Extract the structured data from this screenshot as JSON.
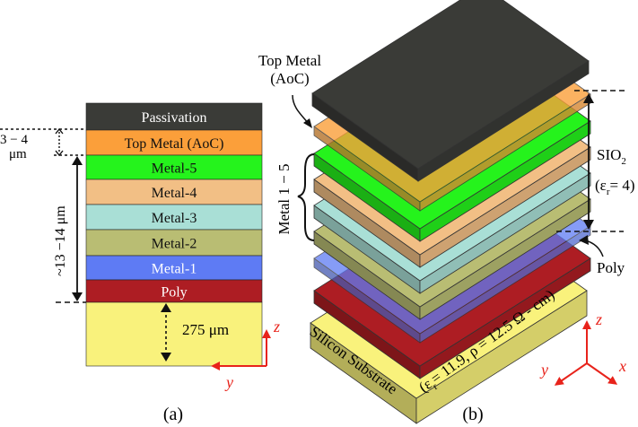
{
  "panel_a": {
    "caption": "(a)",
    "layers": [
      {
        "label": "Passivation",
        "color": "#3a3b37",
        "text_color": "#ffffff"
      },
      {
        "label": "Top Metal (AoC)",
        "color": "#fb9f3a",
        "text_color": "#111111"
      },
      {
        "label": "Metal-5",
        "color": "#25f31c",
        "text_color": "#111111"
      },
      {
        "label": "Metal-4",
        "color": "#f2bf85",
        "text_color": "#111111"
      },
      {
        "label": "Metal-3",
        "color": "#a9dfd6",
        "text_color": "#111111"
      },
      {
        "label": "Metal-2",
        "color": "#b9bd73",
        "text_color": "#111111"
      },
      {
        "label": "Metal-1",
        "color": "#5e7bf4",
        "text_color": "#ffffff"
      },
      {
        "label": "Poly",
        "color": "#ad1d23",
        "text_color": "#ffffff"
      },
      {
        "label": "",
        "color": "#f9f27c",
        "text_color": "#111111"
      }
    ],
    "dim_top_metal_line1": "3 − 4",
    "dim_top_metal_line2": "μm",
    "dim_stack": "~13 −14 μm",
    "dim_substrate": "275 μm",
    "axis_z": "z",
    "axis_y": "y"
  },
  "panel_b": {
    "caption": "(b)",
    "label_top_metal_line1": "Top Metal",
    "label_top_metal_line2": "(AoC)",
    "label_metal_range": "Metal 1 − 5",
    "label_sio2": "SIO",
    "label_sio2_sub": "2",
    "label_eps4": "(ε",
    "label_eps4_sub": "r",
    "label_eps4_rest": "= 4)",
    "label_poly": "Poly",
    "label_silicon": "Silicon Substrate",
    "label_silicon_params": "(ε",
    "label_silicon_params_sub": "r",
    "label_silicon_params_rest": "= 11.9, ρ = 12.5 Ω - cm)",
    "axis_z": "z",
    "axis_y": "y",
    "axis_x": "x"
  },
  "colors": {
    "passivation": "#3a3b37",
    "top_metal": "#fb9f3a",
    "metal5": "#25f31c",
    "metal4": "#f2bf85",
    "metal3": "#a9dfd6",
    "metal2": "#b9bd73",
    "metal1": "#5e7bf4",
    "poly": "#ad1d23",
    "substrate": "#f9f27c",
    "axis_red": "#e8231b"
  }
}
